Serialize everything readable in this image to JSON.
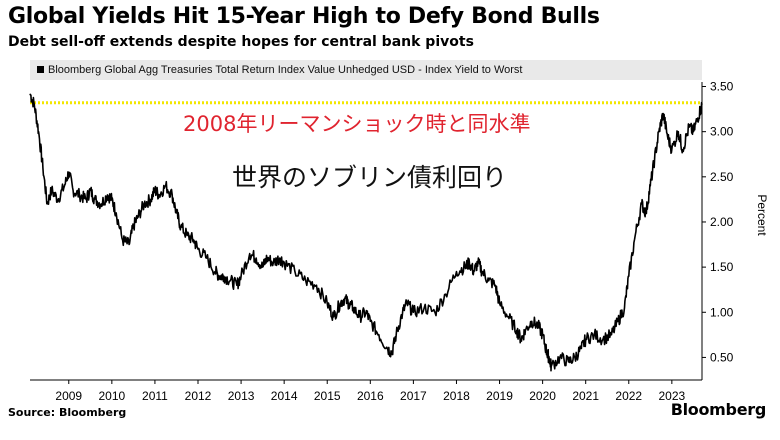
{
  "header": {
    "title": "Global Yields Hit 15-Year High to Defy Bond Bulls",
    "subtitle": "Debt sell-off extends despite hopes for central bank pivots"
  },
  "annotations": {
    "red": "2008年リーマンショック時と同水準",
    "black": "世界のソブリン債利回り"
  },
  "footer": {
    "source": "Source: Bloomberg",
    "brand": "Bloomberg"
  },
  "colors": {
    "line": "#000000",
    "reference_line": "#f2e600",
    "annotation_red": "#e0242f",
    "legend_bg": "#e9e9e9"
  },
  "chart_data": {
    "type": "line",
    "title": "Global Yields Hit 15-Year High to Defy Bond Bulls",
    "subtitle": "Debt sell-off extends despite hopes for central bank pivots",
    "ylabel": "Percent",
    "legend": [
      "Bloomberg Global Agg Treasuries Total Return Index Value Unhedged USD - Index Yield to Worst"
    ],
    "legend_position": "top",
    "ylim": [
      0.25,
      3.55
    ],
    "xlim": [
      2008.1,
      2023.7
    ],
    "y_ticks": [
      "0.50",
      "1.00",
      "1.50",
      "2.00",
      "2.50",
      "3.00",
      "3.50"
    ],
    "y_tick_values": [
      0.5,
      1.0,
      1.5,
      2.0,
      2.5,
      3.0,
      3.5
    ],
    "x_ticks": [
      "2009",
      "2010",
      "2011",
      "2012",
      "2013",
      "2014",
      "2015",
      "2016",
      "2017",
      "2018",
      "2019",
      "2020",
      "2021",
      "2022",
      "2023"
    ],
    "x_tick_values": [
      2009,
      2010,
      2011,
      2012,
      2013,
      2014,
      2015,
      2016,
      2017,
      2018,
      2019,
      2020,
      2021,
      2022,
      2023
    ],
    "reference_line": {
      "y": 3.32,
      "style": "dotted"
    },
    "series": [
      {
        "name": "Bloomberg Global Agg Treasuries Total Return Index Value Unhedged USD - Index Yield to Worst",
        "x": [
          2008.1,
          2008.2,
          2008.3,
          2008.4,
          2008.5,
          2008.6,
          2008.75,
          2008.9,
          2009.0,
          2009.1,
          2009.25,
          2009.4,
          2009.5,
          2009.6,
          2009.75,
          2009.9,
          2010.0,
          2010.1,
          2010.25,
          2010.4,
          2010.5,
          2010.6,
          2010.75,
          2010.9,
          2011.0,
          2011.1,
          2011.25,
          2011.4,
          2011.5,
          2011.6,
          2011.75,
          2011.9,
          2012.0,
          2012.2,
          2012.4,
          2012.5,
          2012.6,
          2012.75,
          2012.9,
          2013.0,
          2013.2,
          2013.35,
          2013.5,
          2013.6,
          2013.75,
          2013.9,
          2014.0,
          2014.25,
          2014.5,
          2014.75,
          2015.0,
          2015.15,
          2015.3,
          2015.4,
          2015.5,
          2015.6,
          2015.75,
          2015.9,
          2016.0,
          2016.2,
          2016.4,
          2016.5,
          2016.6,
          2016.75,
          2016.85,
          2017.0,
          2017.25,
          2017.5,
          2017.75,
          2018.0,
          2018.2,
          2018.3,
          2018.4,
          2018.5,
          2018.6,
          2018.75,
          2018.9,
          2019.0,
          2019.2,
          2019.4,
          2019.5,
          2019.6,
          2019.75,
          2019.9,
          2020.0,
          2020.1,
          2020.15,
          2020.2,
          2020.4,
          2020.6,
          2020.75,
          2020.9,
          2021.0,
          2021.2,
          2021.4,
          2021.6,
          2021.75,
          2021.9,
          2022.0,
          2022.15,
          2022.3,
          2022.4,
          2022.5,
          2022.6,
          2022.7,
          2022.8,
          2022.9,
          2023.0,
          2023.15,
          2023.25,
          2023.4,
          2023.5,
          2023.6,
          2023.7
        ],
        "values": [
          3.42,
          3.3,
          3.0,
          2.6,
          2.2,
          2.35,
          2.25,
          2.4,
          2.55,
          2.35,
          2.3,
          2.25,
          2.35,
          2.25,
          2.2,
          2.3,
          2.25,
          2.1,
          1.8,
          1.75,
          1.95,
          2.05,
          2.2,
          2.25,
          2.35,
          2.3,
          2.4,
          2.3,
          2.1,
          1.95,
          1.85,
          1.8,
          1.7,
          1.6,
          1.45,
          1.4,
          1.4,
          1.35,
          1.3,
          1.4,
          1.65,
          1.6,
          1.5,
          1.6,
          1.55,
          1.6,
          1.55,
          1.45,
          1.35,
          1.3,
          1.1,
          0.95,
          1.1,
          1.15,
          1.1,
          1.05,
          0.95,
          1.0,
          0.9,
          0.75,
          0.6,
          0.55,
          0.75,
          1.0,
          1.1,
          1.0,
          1.05,
          1.0,
          1.2,
          1.45,
          1.5,
          1.55,
          1.45,
          1.55,
          1.45,
          1.35,
          1.3,
          1.1,
          0.95,
          0.8,
          0.7,
          0.8,
          0.9,
          0.85,
          0.75,
          0.55,
          0.5,
          0.4,
          0.5,
          0.45,
          0.5,
          0.6,
          0.7,
          0.75,
          0.7,
          0.75,
          0.9,
          1.05,
          1.4,
          1.85,
          2.2,
          2.1,
          2.4,
          2.7,
          3.0,
          3.2,
          2.95,
          2.8,
          3.0,
          2.8,
          3.05,
          3.0,
          3.15,
          3.3
        ]
      }
    ]
  }
}
